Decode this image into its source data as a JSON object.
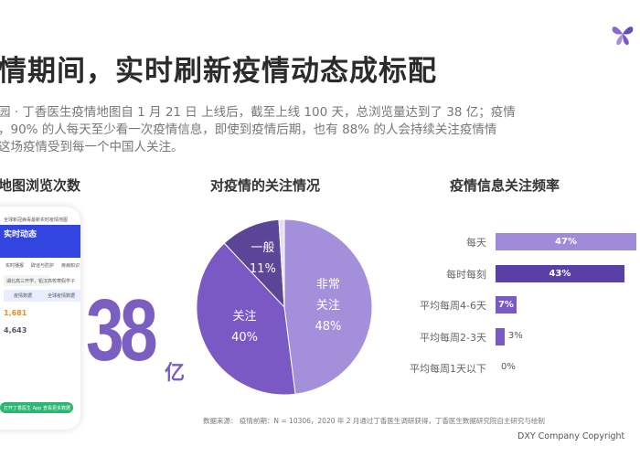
{
  "header": {
    "title": "情期间，实时刷新疫情动态成标配",
    "desc": [
      "园 · 丁香医生疫情地图自 1 月 21 日 上线后，截至上线 100 天，总浏览量达到了 38 亿；疫情",
      "，90% 的人每天至少看一次疫情信息，即使到疫情后期，也有 88% 的人会持续关注疫情情",
      "这场疫情受到每一个中国人关注。"
    ]
  },
  "sections": {
    "views": "地图浏览次数",
    "attention": "对疫情的关注情况",
    "frequency": "疫情信息关注频率"
  },
  "phone": {
    "header": "全球新冠病毒最新实时疫情地图",
    "banner": "实时动态",
    "tabs": [
      "实时播报",
      "辟谣与防护",
      "疾病知识"
    ],
    "search": "湖北高三开学，铅汉高校寒假学子",
    "data_tabs": [
      "疫情数据",
      "全球疫情数据"
    ],
    "nums": [
      "1,681",
      "4,643"
    ],
    "cta": "打开丁香医生 App 查看更多数据"
  },
  "big_number": {
    "value": "38",
    "unit": "亿"
  },
  "chart_data": [
    {
      "type": "pie",
      "title": "对疫情的关注情况",
      "slices": [
        {
          "label": "非常\n关注",
          "name_lines": [
            "非常",
            "关注"
          ],
          "value": 48,
          "value_label": "48%",
          "color": "#a48fdb"
        },
        {
          "label": "关注",
          "name_lines": [
            "关注"
          ],
          "value": 40,
          "value_label": "40%",
          "color": "#7a59c4"
        },
        {
          "label": "一般",
          "name_lines": [
            "一般"
          ],
          "value": 11,
          "value_label": "11%",
          "color": "#5b4596"
        },
        {
          "label": "",
          "name_lines": [],
          "value": 1,
          "value_label": "",
          "color": "#e4def2"
        }
      ]
    },
    {
      "type": "bar",
      "orientation": "horizontal",
      "title": "疫情信息关注频率",
      "categories": [
        "每天",
        "每时每刻",
        "平均每周4-6天",
        "平均每周2-3天",
        "平均每周1天以下"
      ],
      "values": [
        47,
        43,
        7,
        3,
        0
      ],
      "value_labels": [
        "47%",
        "43%",
        "7%",
        "3%",
        "0%"
      ],
      "colors": [
        "#9e8ad8",
        "#5a3fa6",
        "#7a59c4",
        "#7a59c4",
        "#7a59c4"
      ]
    }
  ],
  "footer": {
    "source": "数据来源： 疫情前期：N = 10306，2020 年 2 月通过丁香医生调研获得，丁香医生数据研究院自主研究与绘制",
    "copyright": "DXY Company Copyright"
  }
}
